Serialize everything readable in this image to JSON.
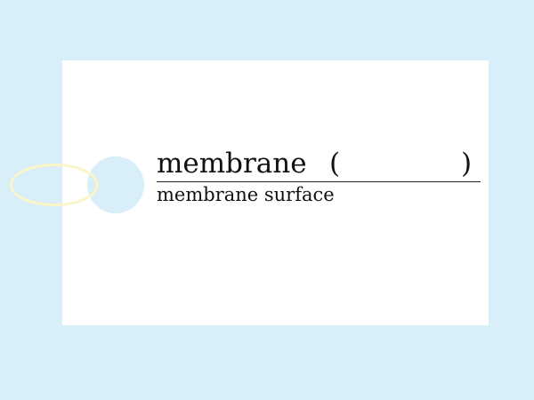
{
  "card": {
    "word": "membrane",
    "paren_open": "(",
    "paren_close": ")",
    "meaning": "membrane surface"
  },
  "colors": {
    "background": "#d8eef9",
    "card": "#ffffff",
    "ring": "#fbf6c6",
    "text": "#111111"
  }
}
